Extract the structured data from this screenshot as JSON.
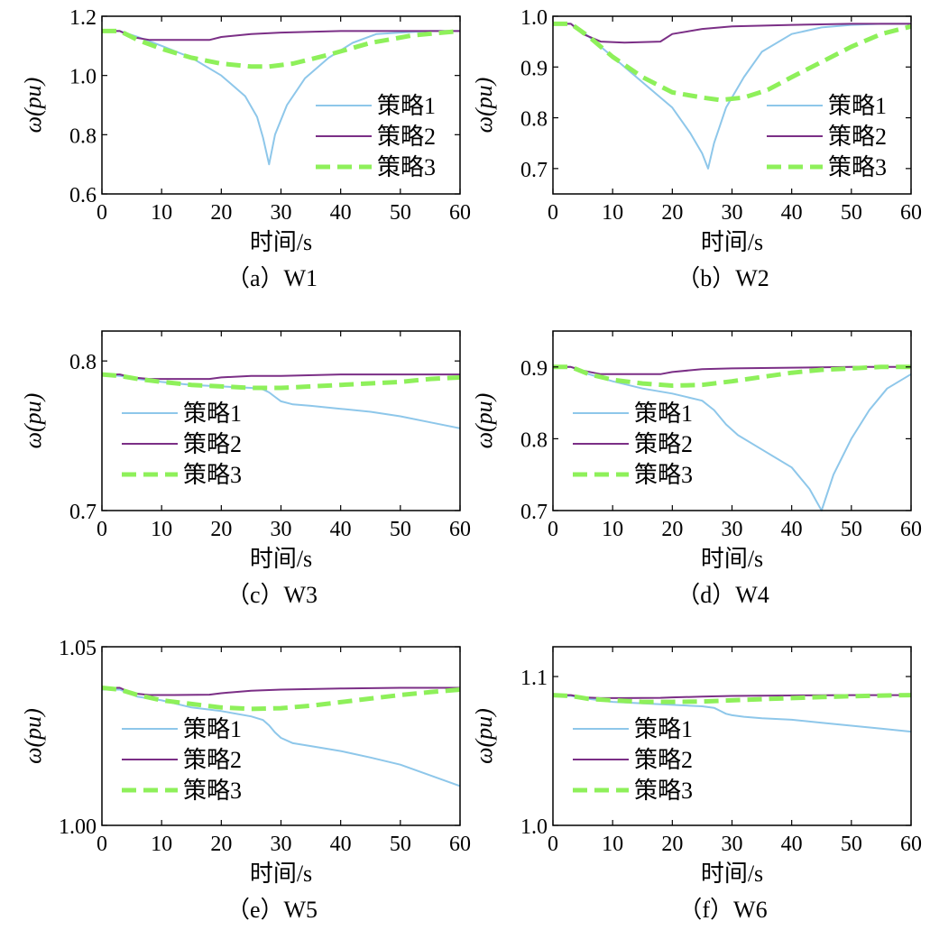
{
  "figure": {
    "series_names": [
      "策略1",
      "策略2",
      "策略3"
    ],
    "series_colors": [
      "#8ec7ea",
      "#7b2f86",
      "#8ef05a"
    ],
    "x_label": "时间/s",
    "y_label": "ω(pu)"
  },
  "chart_data": [
    {
      "type": "line",
      "caption": "（a）W1",
      "xlabel": "时间/s",
      "ylabel": "ω(pu)",
      "xlim": [
        0,
        60
      ],
      "ylim": [
        0.6,
        1.2
      ],
      "xticks": [
        "0",
        "10",
        "20",
        "30",
        "40",
        "50",
        "60"
      ],
      "yticks": [
        "0.6",
        "0.8",
        "1.0",
        "1.2"
      ],
      "legend": [
        "策略1",
        "策略2",
        "策略3"
      ],
      "legend_position": "middle-right",
      "series": [
        {
          "name": "策略1",
          "x": [
            0,
            3,
            6,
            10,
            15,
            20,
            24,
            26,
            27,
            28,
            29,
            31,
            34,
            38,
            42,
            46,
            50,
            55,
            60
          ],
          "y": [
            1.15,
            1.15,
            1.13,
            1.1,
            1.06,
            1.0,
            0.93,
            0.86,
            0.79,
            0.7,
            0.8,
            0.9,
            0.99,
            1.06,
            1.11,
            1.14,
            1.145,
            1.15,
            1.15
          ]
        },
        {
          "name": "策略2",
          "x": [
            0,
            3,
            5,
            8,
            12,
            18,
            20,
            25,
            30,
            40,
            50,
            60
          ],
          "y": [
            1.15,
            1.15,
            1.13,
            1.12,
            1.12,
            1.12,
            1.13,
            1.14,
            1.145,
            1.15,
            1.15,
            1.15
          ]
        },
        {
          "name": "策略3",
          "x": [
            0,
            3,
            6,
            10,
            15,
            20,
            25,
            28,
            32,
            38,
            45,
            52,
            60
          ],
          "y": [
            1.15,
            1.15,
            1.12,
            1.09,
            1.06,
            1.04,
            1.03,
            1.03,
            1.04,
            1.07,
            1.11,
            1.135,
            1.15
          ]
        }
      ]
    },
    {
      "type": "line",
      "caption": "（b）W2",
      "xlabel": "时间/s",
      "ylabel": "ω(pu)",
      "xlim": [
        0,
        60
      ],
      "ylim": [
        0.65,
        1.0
      ],
      "xticks": [
        "0",
        "10",
        "20",
        "30",
        "40",
        "50",
        "60"
      ],
      "yticks": [
        "0.7",
        "0.8",
        "0.9",
        "1.0"
      ],
      "legend": [
        "策略1",
        "策略2",
        "策略3"
      ],
      "legend_position": "middle-right",
      "series": [
        {
          "name": "策略1",
          "x": [
            0,
            3,
            6,
            10,
            15,
            20,
            23,
            25,
            26,
            27,
            29,
            32,
            35,
            40,
            45,
            50,
            55,
            60
          ],
          "y": [
            0.985,
            0.985,
            0.96,
            0.92,
            0.87,
            0.82,
            0.77,
            0.73,
            0.7,
            0.75,
            0.82,
            0.88,
            0.93,
            0.965,
            0.978,
            0.983,
            0.985,
            0.985
          ]
        },
        {
          "name": "策略2",
          "x": [
            0,
            3,
            5,
            8,
            12,
            18,
            20,
            25,
            30,
            40,
            50,
            60
          ],
          "y": [
            0.985,
            0.985,
            0.965,
            0.95,
            0.948,
            0.95,
            0.965,
            0.975,
            0.98,
            0.983,
            0.985,
            0.985
          ]
        },
        {
          "name": "策略3",
          "x": [
            0,
            3,
            6,
            10,
            15,
            20,
            25,
            28,
            32,
            36,
            40,
            45,
            50,
            55,
            60
          ],
          "y": [
            0.985,
            0.985,
            0.96,
            0.92,
            0.88,
            0.85,
            0.84,
            0.835,
            0.84,
            0.855,
            0.88,
            0.91,
            0.94,
            0.965,
            0.98
          ]
        }
      ]
    },
    {
      "type": "line",
      "caption": "（c）W3",
      "xlabel": "时间/s",
      "ylabel": "ω(pu)",
      "xlim": [
        0,
        60
      ],
      "ylim": [
        0.7,
        0.82
      ],
      "xticks": [
        "0",
        "10",
        "20",
        "30",
        "40",
        "50",
        "60"
      ],
      "yticks": [
        "0.7",
        "0.8"
      ],
      "legend": [
        "策略1",
        "策略2",
        "策略3"
      ],
      "legend_position": "middle-left",
      "series": [
        {
          "name": "策略1",
          "x": [
            0,
            3,
            6,
            10,
            15,
            20,
            25,
            27,
            28,
            29,
            30,
            32,
            35,
            40,
            45,
            50,
            55,
            60
          ],
          "y": [
            0.791,
            0.79,
            0.788,
            0.786,
            0.784,
            0.783,
            0.782,
            0.781,
            0.779,
            0.776,
            0.773,
            0.771,
            0.77,
            0.768,
            0.766,
            0.763,
            0.759,
            0.755
          ]
        },
        {
          "name": "策略2",
          "x": [
            0,
            3,
            5,
            8,
            12,
            18,
            20,
            25,
            30,
            40,
            50,
            60
          ],
          "y": [
            0.791,
            0.791,
            0.789,
            0.788,
            0.788,
            0.788,
            0.789,
            0.79,
            0.79,
            0.791,
            0.791,
            0.791
          ]
        },
        {
          "name": "策略3",
          "x": [
            0,
            3,
            6,
            10,
            15,
            20,
            25,
            30,
            35,
            40,
            45,
            50,
            55,
            60
          ],
          "y": [
            0.791,
            0.79,
            0.788,
            0.786,
            0.784,
            0.783,
            0.782,
            0.782,
            0.783,
            0.784,
            0.785,
            0.786,
            0.788,
            0.789
          ]
        }
      ]
    },
    {
      "type": "line",
      "caption": "（d）W4",
      "xlabel": "时间/s",
      "ylabel": "ω(pu)",
      "xlim": [
        0,
        60
      ],
      "ylim": [
        0.7,
        0.95
      ],
      "xticks": [
        "0",
        "10",
        "20",
        "30",
        "40",
        "50",
        "60"
      ],
      "yticks": [
        "0.7",
        "0.8",
        "0.9"
      ],
      "legend": [
        "策略1",
        "策略2",
        "策略3"
      ],
      "legend_position": "middle-left",
      "series": [
        {
          "name": "策略1",
          "x": [
            0,
            3,
            6,
            10,
            15,
            20,
            25,
            27,
            29,
            31,
            35,
            40,
            43,
            45,
            47,
            50,
            53,
            56,
            60
          ],
          "y": [
            0.9,
            0.9,
            0.89,
            0.88,
            0.87,
            0.863,
            0.853,
            0.84,
            0.82,
            0.805,
            0.785,
            0.76,
            0.73,
            0.7,
            0.75,
            0.8,
            0.84,
            0.87,
            0.89
          ]
        },
        {
          "name": "策略2",
          "x": [
            0,
            3,
            5,
            8,
            12,
            18,
            20,
            25,
            30,
            40,
            50,
            60
          ],
          "y": [
            0.9,
            0.9,
            0.895,
            0.89,
            0.89,
            0.89,
            0.893,
            0.897,
            0.898,
            0.899,
            0.9,
            0.9
          ]
        },
        {
          "name": "策略3",
          "x": [
            0,
            3,
            6,
            10,
            15,
            20,
            25,
            30,
            35,
            40,
            45,
            50,
            55,
            60
          ],
          "y": [
            0.9,
            0.9,
            0.89,
            0.882,
            0.877,
            0.874,
            0.875,
            0.88,
            0.886,
            0.892,
            0.896,
            0.898,
            0.9,
            0.9
          ]
        }
      ]
    },
    {
      "type": "line",
      "caption": "（e）W5",
      "xlabel": "时间/s",
      "ylabel": "ω(pu)",
      "xlim": [
        0,
        60
      ],
      "ylim": [
        1.0,
        1.05
      ],
      "xticks": [
        "0",
        "10",
        "20",
        "30",
        "40",
        "50",
        "60"
      ],
      "yticks": [
        "1.00",
        "1.05"
      ],
      "legend": [
        "策略1",
        "策略2",
        "策略3"
      ],
      "legend_position": "middle-left",
      "series": [
        {
          "name": "策略1",
          "x": [
            0,
            3,
            6,
            10,
            15,
            20,
            25,
            27,
            28,
            29,
            30,
            32,
            35,
            40,
            45,
            50,
            55,
            60
          ],
          "y": [
            1.038,
            1.038,
            1.036,
            1.035,
            1.033,
            1.032,
            1.0305,
            1.0295,
            1.028,
            1.026,
            1.0245,
            1.023,
            1.0222,
            1.0208,
            1.019,
            1.017,
            1.014,
            1.011
          ]
        },
        {
          "name": "策略2",
          "x": [
            0,
            3,
            5,
            8,
            12,
            18,
            20,
            25,
            30,
            40,
            50,
            60
          ],
          "y": [
            1.0385,
            1.0385,
            1.037,
            1.0365,
            1.0365,
            1.0366,
            1.037,
            1.0377,
            1.038,
            1.0383,
            1.0385,
            1.0385
          ]
        },
        {
          "name": "策略3",
          "x": [
            0,
            3,
            6,
            10,
            15,
            20,
            25,
            30,
            35,
            40,
            45,
            50,
            55,
            60
          ],
          "y": [
            1.0385,
            1.038,
            1.0365,
            1.035,
            1.034,
            1.033,
            1.0326,
            1.0328,
            1.0335,
            1.0345,
            1.0355,
            1.0365,
            1.0373,
            1.038
          ]
        }
      ]
    },
    {
      "type": "line",
      "caption": "（f）W6",
      "xlabel": "时间/s",
      "ylabel": "ω(pu)",
      "xlim": [
        0,
        60
      ],
      "ylim": [
        1.0,
        1.12
      ],
      "xticks": [
        "0",
        "10",
        "20",
        "30",
        "40",
        "50",
        "60"
      ],
      "yticks": [
        "1.0",
        "1.1"
      ],
      "legend": [
        "策略1",
        "策略2",
        "策略3"
      ],
      "legend_position": "middle-left",
      "series": [
        {
          "name": "策略1",
          "x": [
            0,
            3,
            6,
            10,
            15,
            20,
            25,
            27,
            28,
            29,
            30,
            32,
            35,
            40,
            45,
            50,
            55,
            60
          ],
          "y": [
            1.087,
            1.087,
            1.085,
            1.083,
            1.082,
            1.081,
            1.08,
            1.079,
            1.077,
            1.075,
            1.074,
            1.073,
            1.072,
            1.071,
            1.069,
            1.067,
            1.065,
            1.063
          ]
        },
        {
          "name": "策略2",
          "x": [
            0,
            3,
            5,
            8,
            12,
            18,
            20,
            25,
            30,
            40,
            50,
            60
          ],
          "y": [
            1.0875,
            1.0875,
            1.086,
            1.0855,
            1.0855,
            1.0857,
            1.086,
            1.0865,
            1.087,
            1.0873,
            1.0875,
            1.0875
          ]
        },
        {
          "name": "策略3",
          "x": [
            0,
            3,
            6,
            10,
            15,
            20,
            25,
            30,
            35,
            40,
            45,
            50,
            55,
            60
          ],
          "y": [
            1.0875,
            1.087,
            1.085,
            1.084,
            1.083,
            1.083,
            1.0832,
            1.084,
            1.0848,
            1.0855,
            1.0862,
            1.0868,
            1.0872,
            1.0875
          ]
        }
      ]
    }
  ]
}
